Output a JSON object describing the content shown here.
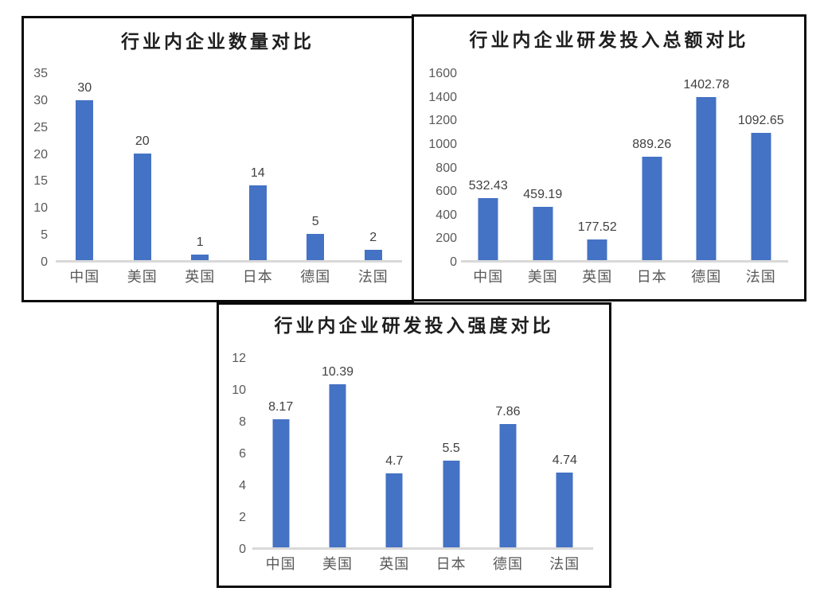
{
  "page": {
    "background_color": "#ffffff"
  },
  "colors": {
    "bar_fill": "#4472c4",
    "baseline": "#d9d9d9",
    "tick_text": "#595959",
    "category_text": "#595959",
    "value_text": "#404040",
    "title_text": "#1f1f1f",
    "panel_border": "#0a0a0a"
  },
  "chart_data": [
    {
      "type": "bar",
      "title": "行业内企业数量对比",
      "categories": [
        "中国",
        "美国",
        "英国",
        "日本",
        "德国",
        "法国"
      ],
      "values": [
        30,
        20,
        1,
        14,
        5,
        2
      ],
      "value_labels": [
        "30",
        "20",
        "1",
        "14",
        "5",
        "2"
      ],
      "ylim": [
        0,
        35
      ],
      "yticks": [
        0,
        5,
        10,
        15,
        20,
        25,
        30,
        35
      ],
      "xlabel": "",
      "ylabel": "",
      "grid": false,
      "legend": "none"
    },
    {
      "type": "bar",
      "title": "行业内企业研发投入总额对比",
      "categories": [
        "中国",
        "美国",
        "英国",
        "日本",
        "德国",
        "法国"
      ],
      "values": [
        532.43,
        459.19,
        177.52,
        889.26,
        1402.78,
        1092.65
      ],
      "value_labels": [
        "532.43",
        "459.19",
        "177.52",
        "889.26",
        "1402.78",
        "1092.65"
      ],
      "ylim": [
        0,
        1600
      ],
      "yticks": [
        0,
        200,
        400,
        600,
        800,
        1000,
        1200,
        1400,
        1600
      ],
      "xlabel": "",
      "ylabel": "",
      "grid": false,
      "legend": "none"
    },
    {
      "type": "bar",
      "title": "行业内企业研发投入强度对比",
      "categories": [
        "中国",
        "美国",
        "英国",
        "日本",
        "德国",
        "法国"
      ],
      "values": [
        8.17,
        10.39,
        4.7,
        5.5,
        7.86,
        4.74
      ],
      "value_labels": [
        "8.17",
        "10.39",
        "4.7",
        "5.5",
        "7.86",
        "4.74"
      ],
      "ylim": [
        0,
        12
      ],
      "yticks": [
        0,
        2,
        4,
        6,
        8,
        10,
        12
      ],
      "xlabel": "",
      "ylabel": "",
      "grid": false,
      "legend": "none"
    }
  ]
}
